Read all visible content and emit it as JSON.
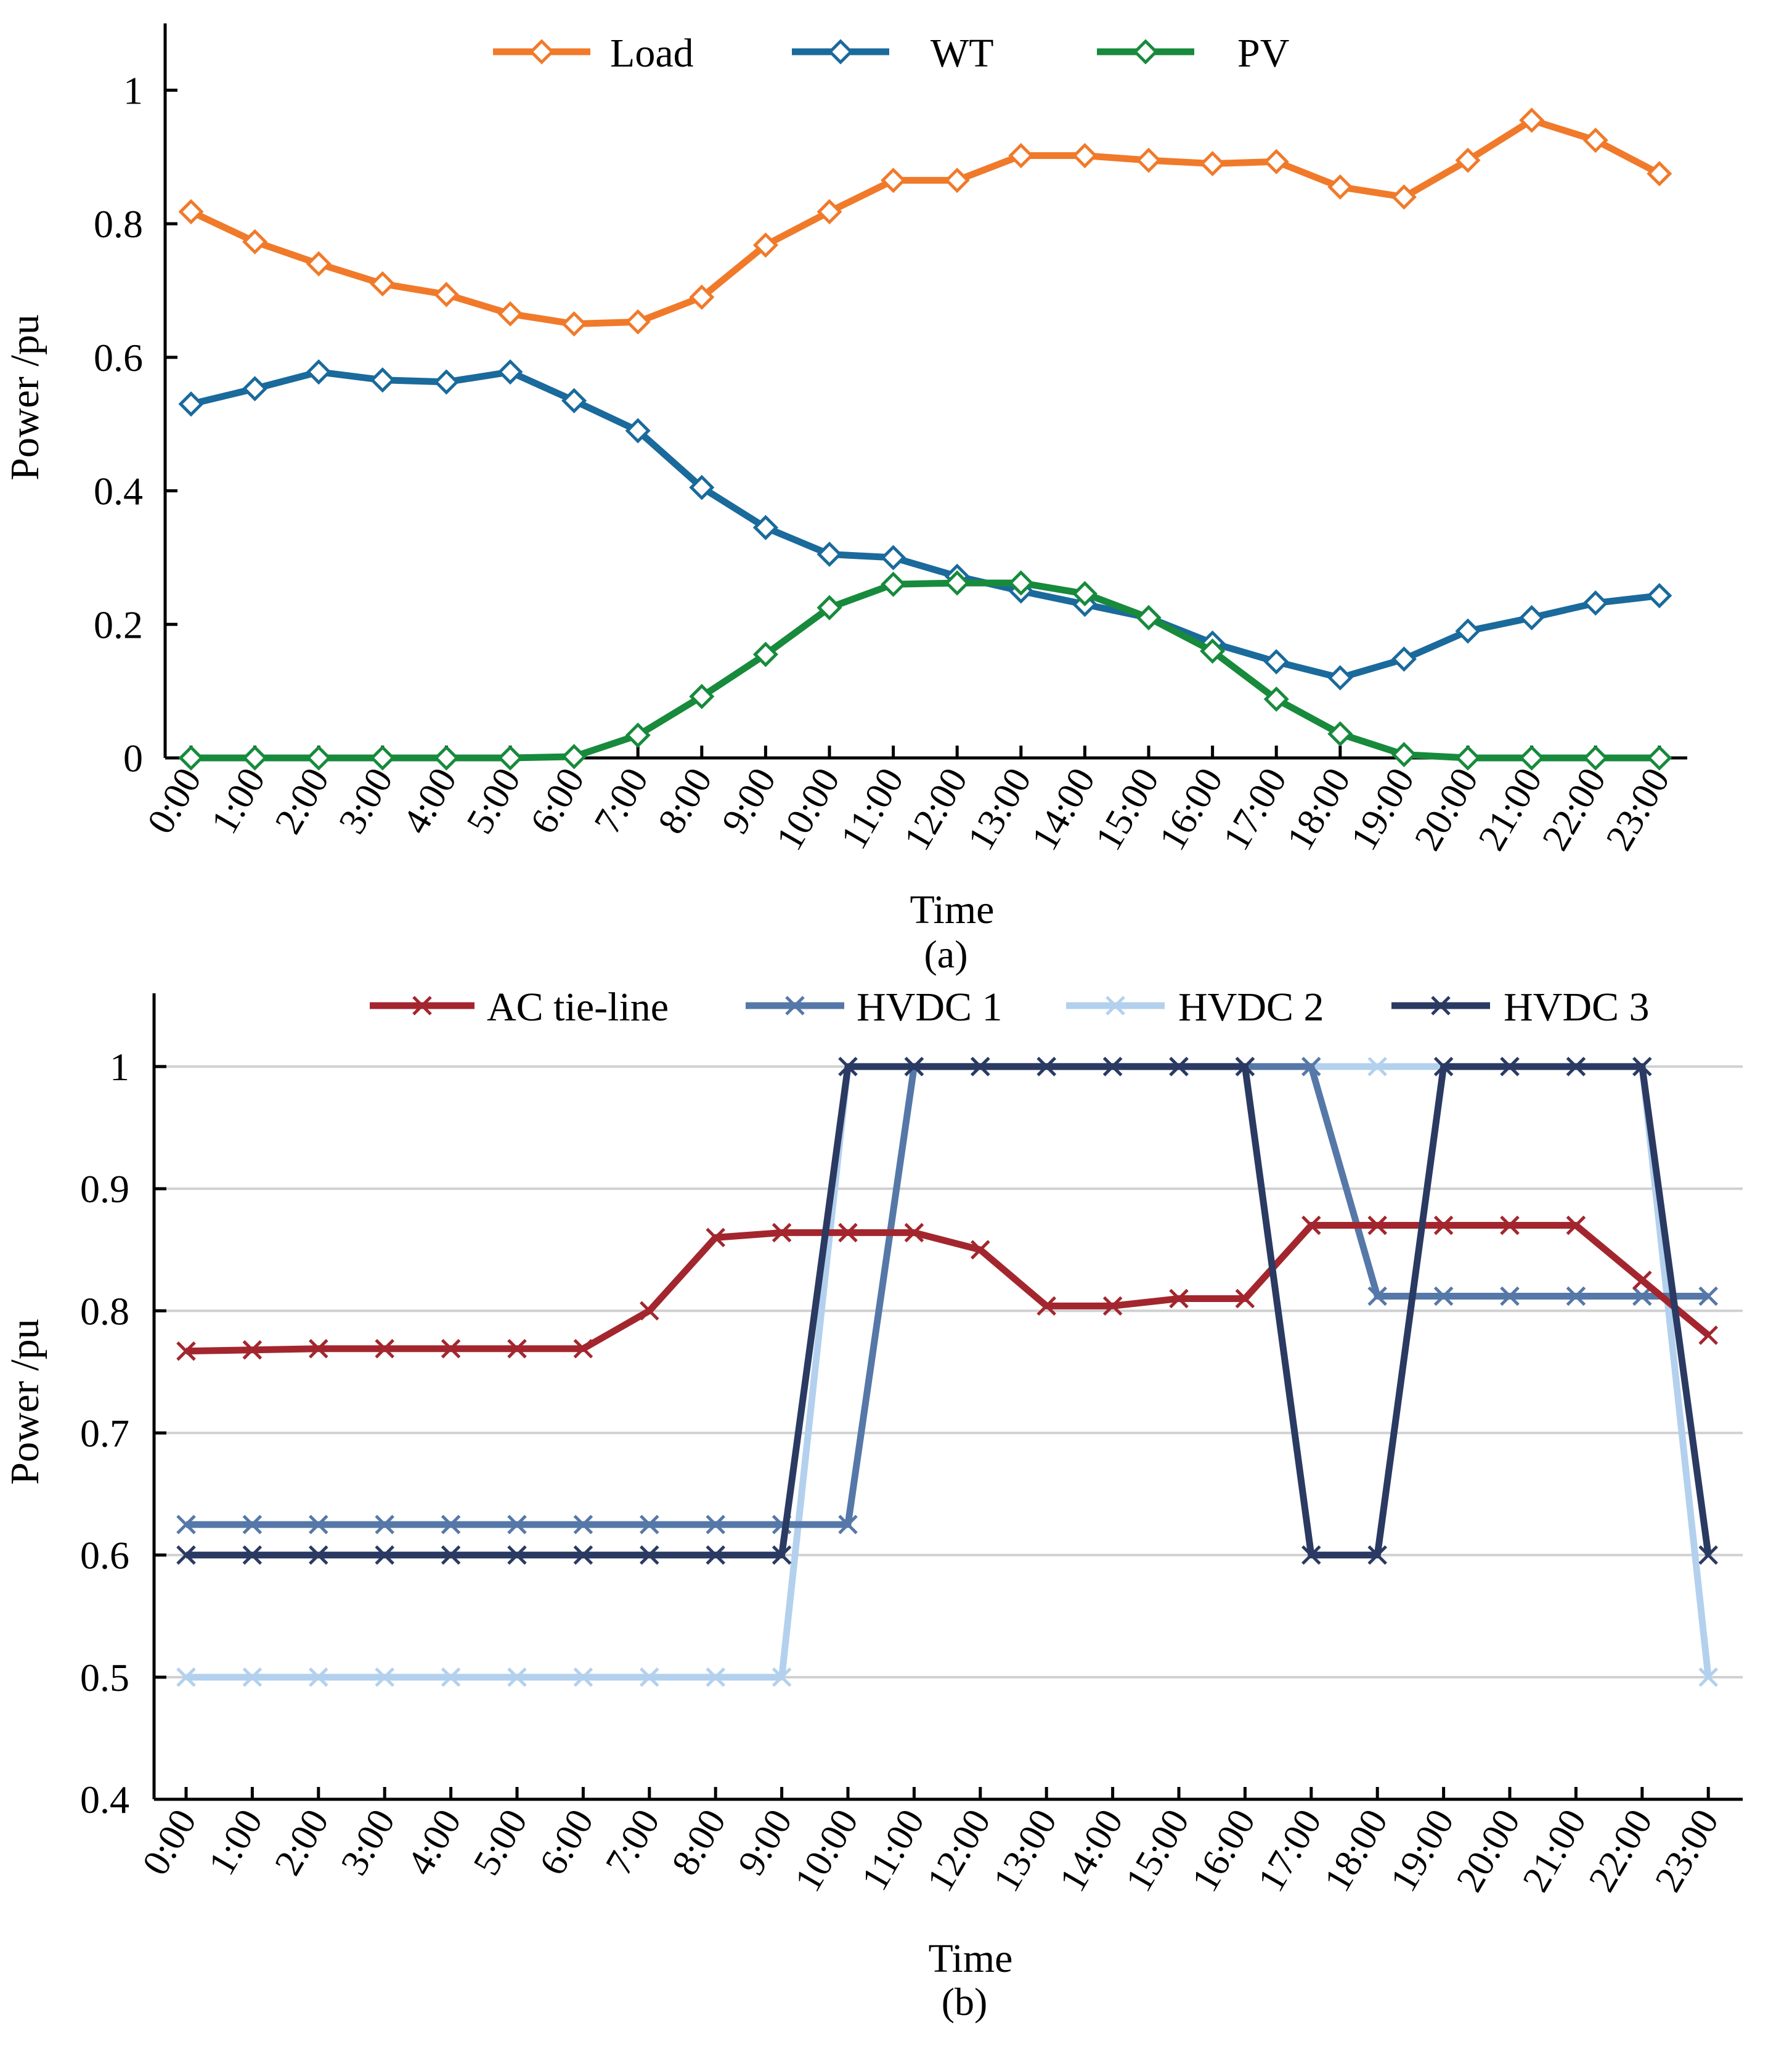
{
  "figure": {
    "caption_a": "(a)",
    "caption_b": "(b)"
  },
  "colors": {
    "Load": "#f07a2a",
    "WT": "#1a6a9c",
    "PV": "#178a3c",
    "AC tie-line": "#a3262e",
    "HVDC 1": "#5678a8",
    "HVDC 2": "#b3d1ee",
    "HVDC 3": "#2a3a62"
  },
  "chart_data": [
    {
      "type": "line",
      "caption": "(a)",
      "xlabel": "Time",
      "ylabel": "Power /pu",
      "ylim": [
        0,
        1.1
      ],
      "yticks": [
        0,
        0.2,
        0.4,
        0.6,
        0.8,
        1
      ],
      "ytick_labels": [
        "0",
        "0.2",
        "0.4",
        "0.6",
        "0.8",
        "1"
      ],
      "grid": false,
      "legend_position": "top",
      "marker": "diamond",
      "categories": [
        "0:00",
        "1:00",
        "2:00",
        "3:00",
        "4:00",
        "5:00",
        "6:00",
        "7:00",
        "8:00",
        "9:00",
        "10:00",
        "11:00",
        "12:00",
        "13:00",
        "14:00",
        "15:00",
        "16:00",
        "17:00",
        "18:00",
        "19:00",
        "20:00",
        "21:00",
        "22:00",
        "23:00"
      ],
      "series": [
        {
          "name": "Load",
          "values": [
            0.818,
            0.773,
            0.74,
            0.71,
            0.694,
            0.665,
            0.65,
            0.653,
            0.69,
            0.768,
            0.818,
            0.865,
            0.865,
            0.902,
            0.902,
            0.895,
            0.89,
            0.893,
            0.855,
            0.84,
            0.895,
            0.955,
            0.925,
            0.875
          ]
        },
        {
          "name": "WT",
          "values": [
            0.53,
            0.553,
            0.578,
            0.566,
            0.563,
            0.578,
            0.535,
            0.49,
            0.405,
            0.345,
            0.305,
            0.3,
            0.272,
            0.25,
            0.23,
            0.21,
            0.172,
            0.144,
            0.12,
            0.148,
            0.19,
            0.21,
            0.232,
            0.243
          ]
        },
        {
          "name": "PV",
          "values": [
            0,
            0,
            0,
            0,
            0,
            0,
            0.002,
            0.034,
            0.092,
            0.155,
            0.225,
            0.26,
            0.262,
            0.262,
            0.246,
            0.21,
            0.16,
            0.088,
            0.036,
            0.005,
            0,
            0,
            0,
            0
          ]
        }
      ]
    },
    {
      "type": "line",
      "caption": "(b)",
      "xlabel": "Time",
      "ylabel": "Power /pu",
      "ylim": [
        0.4,
        1.06
      ],
      "yticks": [
        0.4,
        0.5,
        0.6,
        0.7,
        0.8,
        0.9,
        1
      ],
      "ytick_labels": [
        "0.4",
        "0.5",
        "0.6",
        "0.7",
        "0.8",
        "0.9",
        "1"
      ],
      "grid": true,
      "legend_position": "top",
      "marker": "x",
      "categories": [
        "0:00",
        "1:00",
        "2:00",
        "3:00",
        "4:00",
        "5:00",
        "6:00",
        "7:00",
        "8:00",
        "9:00",
        "10:00",
        "11:00",
        "12:00",
        "13:00",
        "14:00",
        "15:00",
        "16:00",
        "17:00",
        "18:00",
        "19:00",
        "20:00",
        "21:00",
        "22:00",
        "23:00"
      ],
      "series": [
        {
          "name": "AC tie-line",
          "values": [
            0.767,
            0.768,
            0.769,
            0.769,
            0.769,
            0.769,
            0.769,
            0.8,
            0.86,
            0.864,
            0.864,
            0.864,
            0.85,
            0.804,
            0.804,
            0.81,
            0.81,
            0.87,
            0.87,
            0.87,
            0.87,
            0.87,
            0.825,
            0.78
          ]
        },
        {
          "name": "HVDC 1",
          "values": [
            0.625,
            0.625,
            0.625,
            0.625,
            0.625,
            0.625,
            0.625,
            0.625,
            0.625,
            0.625,
            0.625,
            1,
            1,
            1,
            1,
            1,
            1,
            1,
            0.812,
            0.812,
            0.812,
            0.812,
            0.812,
            0.812
          ]
        },
        {
          "name": "HVDC 2",
          "values": [
            0.5,
            0.5,
            0.5,
            0.5,
            0.5,
            0.5,
            0.5,
            0.5,
            0.5,
            0.5,
            1,
            1,
            1,
            1,
            1,
            1,
            1,
            1,
            1,
            1,
            1,
            1,
            1,
            0.5
          ]
        },
        {
          "name": "HVDC 3",
          "values": [
            0.6,
            0.6,
            0.6,
            0.6,
            0.6,
            0.6,
            0.6,
            0.6,
            0.6,
            0.6,
            1,
            1,
            1,
            1,
            1,
            1,
            1,
            0.6,
            0.6,
            1,
            1,
            1,
            1,
            0.6
          ]
        }
      ]
    }
  ]
}
